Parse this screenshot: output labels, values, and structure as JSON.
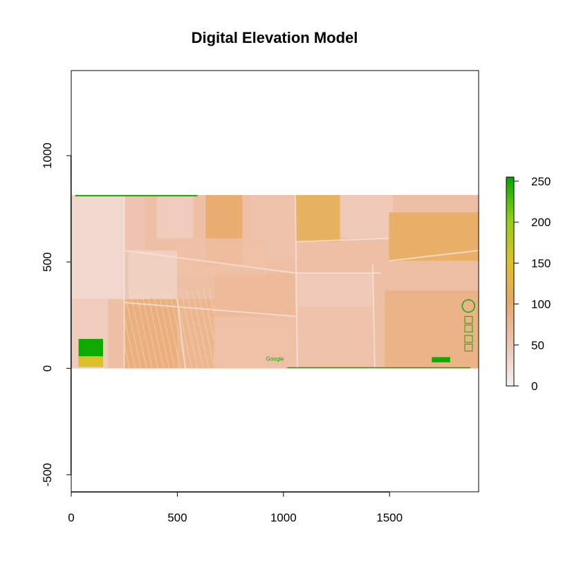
{
  "chart_data": {
    "type": "heatmap",
    "title": "Digital Elevation Model",
    "xlabel": "",
    "ylabel": "",
    "xlim": [
      0,
      1920
    ],
    "ylim": [
      -580,
      1400
    ],
    "x_ticks": [
      0,
      500,
      1000,
      1500
    ],
    "y_ticks": [
      -500,
      0,
      500,
      1000
    ],
    "raster_extent": {
      "x": [
        0,
        1920
      ],
      "y": [
        0,
        815
      ]
    },
    "colorbar": {
      "range": [
        0,
        255
      ],
      "ticks": [
        0,
        50,
        100,
        150,
        200,
        250
      ],
      "colors": [
        "#f2f2f2",
        "#eec4b2",
        "#e8a86a",
        "#ddc126",
        "#8fcf12",
        "#00a600"
      ]
    },
    "approx_values": [
      {
        "region": "background fields",
        "value": 60
      },
      {
        "region": "yellow-crop fields",
        "value": 110
      },
      {
        "region": "pale ground",
        "value": 20
      },
      {
        "region": "green overlay text",
        "value": 250
      }
    ],
    "overlay_text": "Google",
    "grid": false,
    "legend": "right"
  }
}
